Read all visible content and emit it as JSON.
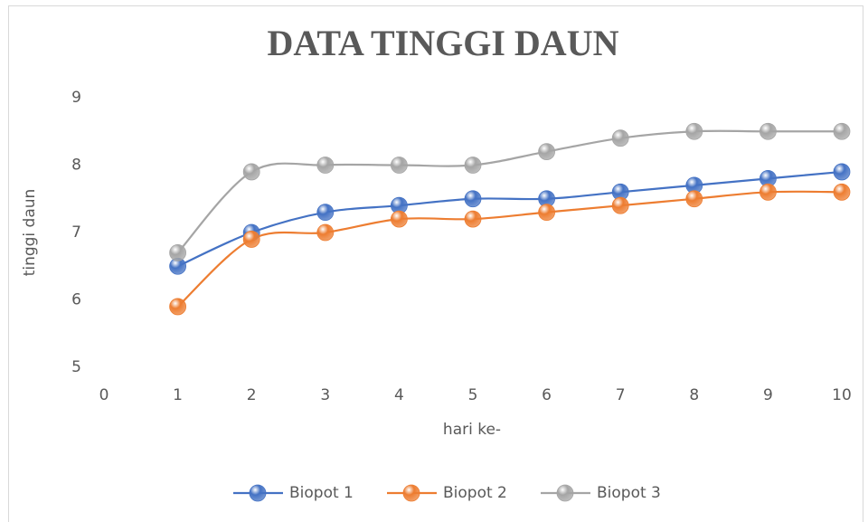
{
  "chart_data": {
    "type": "line",
    "title": "DATA TINGGI DAUN",
    "xlabel": "hari ke-",
    "ylabel": "tinggi daun",
    "x": [
      1,
      2,
      3,
      4,
      5,
      6,
      7,
      8,
      9,
      10
    ],
    "series": [
      {
        "name": "Biopot 1",
        "color": "#4472c4",
        "values": [
          6.5,
          7.0,
          7.3,
          7.4,
          7.5,
          7.5,
          7.6,
          7.7,
          7.8,
          7.9
        ]
      },
      {
        "name": "Biopot 2",
        "color": "#ed7d31",
        "values": [
          5.9,
          6.9,
          7.0,
          7.2,
          7.2,
          7.3,
          7.4,
          7.5,
          7.6,
          7.6
        ]
      },
      {
        "name": "Biopot 3",
        "color": "#a5a5a5",
        "values": [
          6.7,
          7.9,
          8.0,
          8.0,
          8.0,
          8.2,
          8.4,
          8.5,
          8.5,
          8.5
        ]
      }
    ],
    "xlim": [
      0,
      10
    ],
    "xticks": [
      0,
      1,
      2,
      3,
      4,
      5,
      6,
      7,
      8,
      9,
      10
    ],
    "ylim": [
      5,
      9
    ],
    "yticks": [
      5,
      6,
      7,
      8,
      9
    ],
    "grid": false,
    "smooth": true,
    "legend": "bottom"
  }
}
